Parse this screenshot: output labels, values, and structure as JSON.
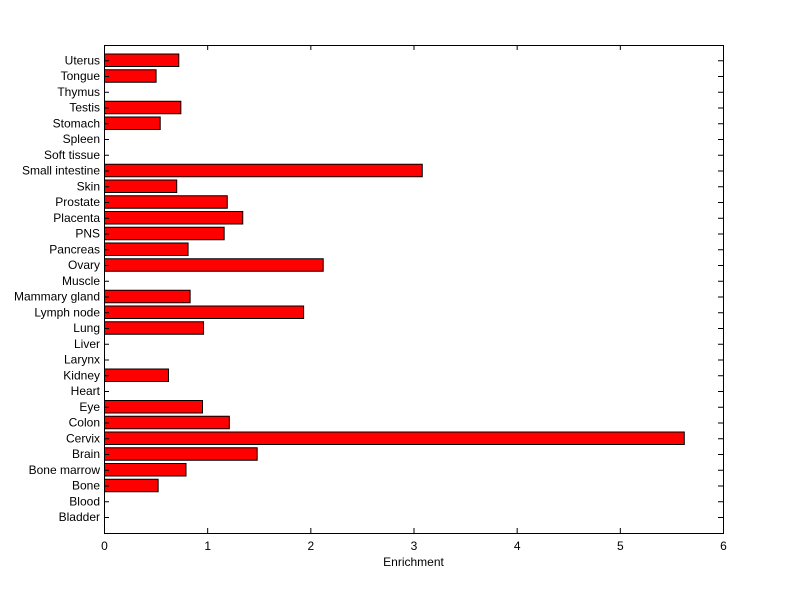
{
  "chart_data": {
    "type": "bar",
    "orientation": "horizontal",
    "title": "",
    "xlabel": "Enrichment",
    "ylabel": "",
    "xlim": [
      0,
      6
    ],
    "xticks": [
      "0",
      "1",
      "2",
      "3",
      "4",
      "5",
      "6"
    ],
    "bar_color": "#ff0000",
    "grid": false,
    "categories": [
      "Bladder",
      "Blood",
      "Bone",
      "Bone marrow",
      "Brain",
      "Cervix",
      "Colon",
      "Eye",
      "Heart",
      "Kidney",
      "Larynx",
      "Liver",
      "Lung",
      "Lymph node",
      "Mammary gland",
      "Muscle",
      "Ovary",
      "Pancreas",
      "PNS",
      "Placenta",
      "Prostate",
      "Skin",
      "Small intestine",
      "Soft tissue",
      "Spleen",
      "Stomach",
      "Testis",
      "Thymus",
      "Tongue",
      "Uterus"
    ],
    "values": [
      0,
      0,
      0.52,
      0.79,
      1.48,
      5.62,
      1.21,
      0.95,
      0,
      0.62,
      0,
      0,
      0.96,
      1.93,
      0.83,
      0,
      2.12,
      0.81,
      1.16,
      1.34,
      1.19,
      0.7,
      3.08,
      0,
      0,
      0.54,
      0.74,
      0,
      0.5,
      0.72
    ]
  }
}
